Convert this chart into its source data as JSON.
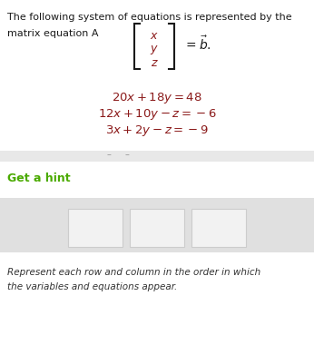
{
  "line1": "The following system of equations is represented by the",
  "prefix": "matrix equation A",
  "vector": [
    "x",
    "y",
    "z"
  ],
  "eq1_latex": "$20x + 18y = 48$",
  "eq2_latex": "$12x + 10y - z = -6$",
  "eq3_latex": "$3x + 2y - z = -9$",
  "hint_text": "Get a hint",
  "footer_line1": "Represent each row and column in the order in which",
  "footer_line2": "the variables and equations appear.",
  "bg_color": "#ffffff",
  "text_color": "#1a1a1a",
  "hint_color": "#4aaa00",
  "eq_color": "#8b1a1a",
  "footer_color": "#333333",
  "divider_color": "#cccccc",
  "gray_bar_color": "#e8e8e8",
  "input_bg": "#e0e0e0",
  "input_cell_color": "#f2f2f2",
  "input_cell_border": "#cccccc"
}
